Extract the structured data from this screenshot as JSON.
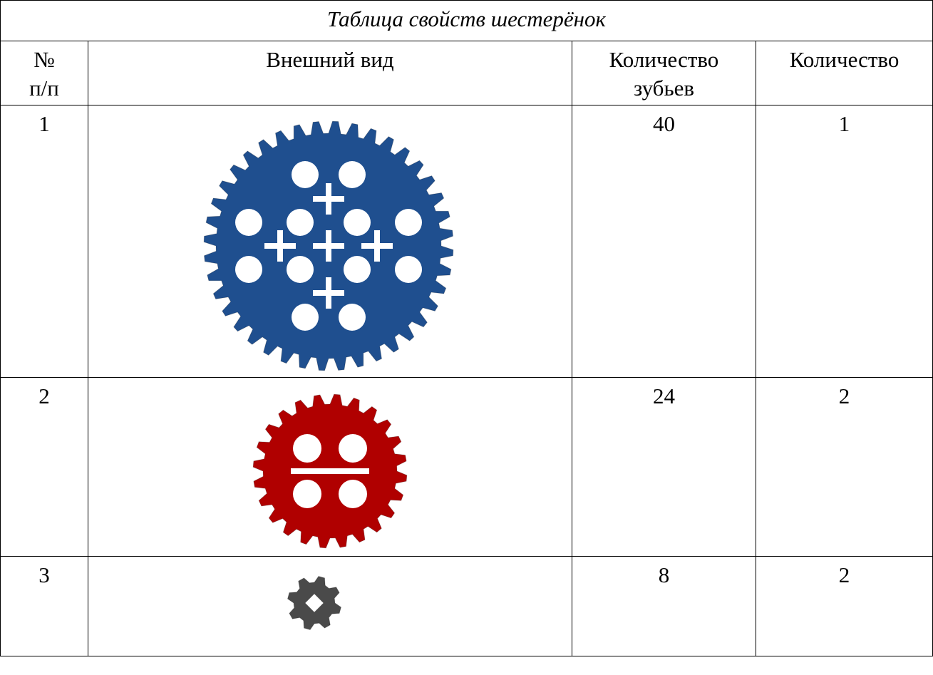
{
  "table": {
    "title": "Таблица свойств шестерёнок",
    "header": [
      [
        "№",
        "п/п"
      ],
      "Внешний вид",
      [
        "Количество",
        "зубьев"
      ],
      "Количество"
    ],
    "rows": [
      [
        1,
        40,
        1
      ],
      [
        2,
        24,
        2
      ],
      [
        3,
        8,
        2
      ]
    ]
  }
}
